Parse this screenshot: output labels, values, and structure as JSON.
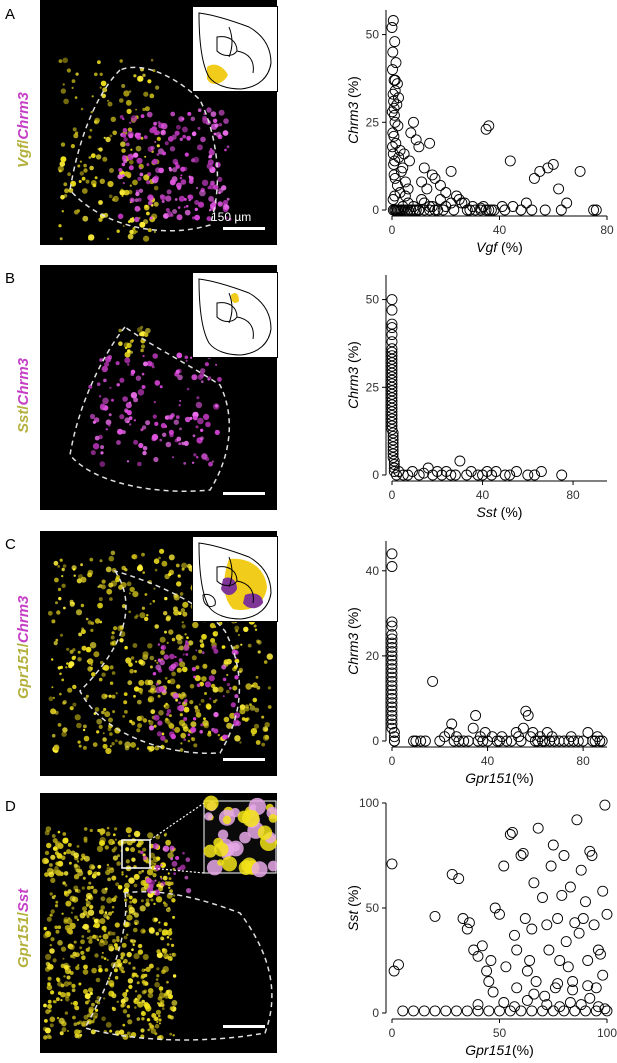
{
  "panels": [
    {
      "letter": "A",
      "stain_gene1": "Vgf",
      "stain_sep": "/",
      "stain_gene2": "Chrm3",
      "scale_text": "150 µm",
      "inset_highlight": "#f2cc1b",
      "chart_data": {
        "type": "scatter",
        "xlabel_gene": "Vgf",
        "xlabel_suffix": " (%)",
        "ylabel_gene": "Chrm3",
        "ylabel_suffix": " (%)",
        "xlim": [
          0,
          80
        ],
        "ylim": [
          0,
          57
        ],
        "xticks": [
          0,
          40,
          80
        ],
        "yticks": [
          0,
          25,
          50
        ],
        "xticklabels": [
          "0",
          "40",
          "80"
        ],
        "yticklabels": [
          "0",
          "25",
          "50"
        ],
        "x": [
          0,
          0.5,
          1,
          0.3,
          1.5,
          0.2,
          0.8,
          2,
          1.2,
          0.4,
          0.6,
          1.8,
          0.1,
          0.9,
          1.1,
          2.2,
          0.3,
          0.7,
          1.4,
          0.2,
          3,
          0.5,
          2.5,
          1,
          0.6,
          4,
          3.5,
          0.8,
          1.2,
          5,
          2,
          6,
          3,
          1,
          0.4,
          7,
          8,
          9,
          10,
          4.5,
          6.5,
          12,
          14,
          15,
          11,
          13,
          16,
          18,
          20,
          22,
          24,
          25,
          27,
          30,
          33,
          35,
          36,
          38,
          41,
          44,
          48,
          50,
          53,
          55,
          58,
          60,
          62,
          65,
          70,
          75,
          76,
          8,
          10,
          12,
          15,
          18,
          22,
          28,
          34,
          42,
          5,
          9,
          14,
          3,
          6,
          2,
          4,
          1.5,
          7,
          11,
          17,
          20,
          26,
          31,
          37,
          45,
          52,
          57,
          63,
          0.5,
          1,
          1.5,
          2,
          2.5,
          3,
          3.5,
          4,
          5,
          6,
          7,
          8,
          9,
          10,
          12,
          14,
          16,
          19,
          23,
          29,
          33,
          35,
          36,
          1.2,
          2.4,
          0.8
        ],
        "y": [
          52,
          54,
          48,
          45,
          42,
          40,
          37,
          36,
          34,
          33,
          31,
          30,
          28,
          27,
          25,
          24,
          22,
          21,
          19,
          18,
          17,
          16,
          15,
          14,
          13,
          12,
          11,
          10,
          9,
          8,
          7,
          6,
          5,
          4,
          3,
          22,
          25,
          20,
          18,
          16,
          14,
          12,
          19,
          10,
          8,
          6,
          9,
          7,
          5,
          11,
          4,
          3,
          2,
          1,
          0.5,
          23,
          24,
          0,
          1,
          14,
          0,
          2,
          9,
          11,
          12,
          13,
          6,
          2,
          11,
          0,
          0,
          1,
          0,
          2,
          1,
          3,
          2,
          0,
          1,
          0,
          4,
          0,
          1,
          0,
          2,
          0,
          1,
          0,
          0,
          3,
          0,
          1,
          2,
          0,
          0,
          1,
          0,
          0,
          0,
          0,
          0,
          0,
          0,
          0,
          0,
          0,
          0,
          0,
          0,
          0,
          0,
          0,
          0,
          0,
          0,
          0,
          0,
          0,
          0,
          0,
          0,
          0,
          37,
          32,
          29
        ]
      }
    },
    {
      "letter": "B",
      "stain_gene1": "Sst",
      "stain_sep": "/",
      "stain_gene2": "Chrm3",
      "inset_highlight": "#f2cc1b",
      "chart_data": {
        "type": "scatter",
        "xlabel_gene": "Sst",
        "xlabel_suffix": " (%)",
        "ylabel_gene": "Chrm3",
        "ylabel_suffix": " (%)",
        "xlim": [
          0,
          95
        ],
        "ylim": [
          0,
          57
        ],
        "xticks": [
          0,
          40,
          80
        ],
        "yticks": [
          0,
          25,
          50
        ],
        "xticklabels": [
          "0",
          "40",
          "80"
        ],
        "yticklabels": [
          "0",
          "25",
          "50"
        ],
        "x": [
          0,
          0,
          0,
          0,
          0,
          0,
          0,
          0,
          0,
          0,
          0,
          0,
          0,
          0,
          0,
          0,
          0,
          0,
          0,
          0,
          0,
          0,
          0,
          0,
          0,
          0,
          0,
          0,
          0,
          0,
          0.5,
          0.5,
          0.5,
          0.5,
          0.5,
          0.5,
          0.5,
          0.5,
          1,
          1,
          1,
          1,
          2,
          3,
          5,
          7,
          9,
          12,
          14,
          16,
          18,
          20,
          22,
          24,
          26,
          28,
          30,
          33,
          35,
          38,
          40,
          42,
          44,
          46,
          50,
          52,
          55,
          60,
          63,
          66,
          75
        ],
        "y": [
          50,
          47,
          43,
          42,
          40,
          38,
          36,
          35,
          34,
          33,
          32,
          31,
          30,
          29,
          28,
          27,
          26,
          25,
          24,
          23,
          22,
          21,
          20,
          19,
          18,
          17,
          16,
          15,
          14,
          13,
          12,
          11,
          10,
          9,
          8,
          7,
          6,
          5,
          4,
          3,
          2,
          1,
          0,
          1,
          0,
          0,
          1,
          0,
          0.5,
          2,
          0,
          1,
          0,
          1,
          0,
          0,
          4,
          0,
          1,
          0,
          0,
          1,
          0,
          1,
          0,
          0,
          1,
          0,
          0,
          1,
          0
        ]
      }
    },
    {
      "letter": "C",
      "stain_gene1": "Gpr151",
      "stain_sep": "/",
      "stain_gene2": "Chrm3",
      "inset_highlight": "#f2cc1b",
      "inset_highlight2": "#7f3596",
      "chart_data": {
        "type": "scatter",
        "xlabel_gene": "Gpr151",
        "xlabel_suffix": "(%)",
        "ylabel_gene": "Chrm3",
        "ylabel_suffix": " (%)",
        "xlim": [
          0,
          90
        ],
        "ylim": [
          0,
          47
        ],
        "xticks": [
          0,
          40,
          80
        ],
        "yticks": [
          0,
          20,
          40
        ],
        "xticklabels": [
          "0",
          "40",
          "80"
        ],
        "yticklabels": [
          "0",
          "20",
          "40"
        ],
        "x": [
          0,
          0,
          0,
          0,
          0,
          0,
          0,
          0,
          0,
          0,
          0,
          0,
          0,
          0,
          0,
          0,
          0,
          0,
          0,
          0,
          0,
          0,
          0,
          0,
          0,
          0,
          0,
          1,
          1,
          1,
          1,
          9,
          10,
          12,
          14,
          17,
          20,
          22,
          24,
          25,
          26,
          27,
          28,
          30,
          32,
          34,
          35,
          36,
          37,
          38,
          39,
          40,
          42,
          44,
          45,
          46,
          48,
          50,
          52,
          53,
          54,
          55,
          56,
          57,
          58,
          59,
          60,
          61,
          62,
          63,
          64,
          65,
          66,
          67,
          68,
          70,
          72,
          74,
          75,
          76,
          78,
          80,
          82,
          84,
          85,
          86,
          87,
          88
        ],
        "y": [
          44,
          41,
          28,
          27,
          25,
          24,
          23,
          22,
          21,
          20,
          19,
          18,
          17,
          16,
          15,
          14,
          13,
          12,
          11,
          10,
          9,
          8,
          7,
          6,
          5,
          4,
          3,
          2,
          1,
          0,
          0,
          0,
          0,
          0,
          0,
          14,
          0,
          1,
          2,
          4,
          0,
          1,
          0,
          0,
          0,
          3,
          6,
          0,
          1,
          0,
          2,
          0,
          1,
          0,
          0,
          1,
          0,
          0,
          2,
          1,
          0,
          3,
          7,
          6,
          1,
          2,
          0,
          0,
          1,
          0,
          0,
          2,
          0,
          1,
          0,
          0,
          0,
          0,
          1,
          0,
          0,
          0,
          2,
          0,
          0,
          1,
          0,
          0
        ]
      }
    },
    {
      "letter": "D",
      "stain_gene1": "Gpr151",
      "stain_sep": "/",
      "stain_gene2": "Sst",
      "chart_data": {
        "type": "scatter",
        "xlabel_gene": "Gpr151",
        "xlabel_suffix": "(%)",
        "ylabel_gene": "Sst",
        "ylabel_suffix": " (%)",
        "xlim": [
          0,
          100
        ],
        "ylim": [
          0,
          100
        ],
        "xticks": [
          0,
          50,
          100
        ],
        "yticks": [
          0,
          50,
          100
        ],
        "xticklabels": [
          "0",
          "50",
          "100"
        ],
        "yticklabels": [
          "0",
          "50",
          "100"
        ],
        "x": [
          0,
          1,
          3,
          20,
          28,
          31,
          33,
          35,
          36,
          38,
          40,
          42,
          44,
          45,
          46,
          48,
          50,
          52,
          53,
          55,
          56,
          57,
          58,
          60,
          61,
          62,
          63,
          64,
          65,
          66,
          67,
          68,
          70,
          72,
          73,
          74,
          75,
          76,
          77,
          78,
          79,
          80,
          81,
          82,
          83,
          84,
          85,
          86,
          87,
          88,
          89,
          90,
          91,
          92,
          93,
          94,
          95,
          96,
          97,
          98,
          99,
          100,
          5,
          10,
          15,
          20,
          25,
          30,
          35,
          40,
          45,
          50,
          55,
          60,
          65,
          70,
          75,
          80,
          85,
          90,
          95,
          100,
          40,
          52,
          57,
          63,
          72,
          78,
          83,
          88,
          92,
          96,
          99,
          47,
          58,
          66,
          71,
          77,
          84,
          91,
          98
        ],
        "y": [
          71,
          20,
          23,
          46,
          66,
          64,
          45,
          40,
          43,
          30,
          27,
          32,
          20,
          15,
          25,
          50,
          47,
          70,
          22,
          85,
          86,
          37,
          30,
          75,
          76,
          45,
          20,
          25,
          40,
          62,
          15,
          88,
          55,
          42,
          30,
          70,
          80,
          12,
          45,
          25,
          56,
          75,
          34,
          22,
          60,
          15,
          43,
          92,
          38,
          68,
          45,
          53,
          25,
          77,
          75,
          42,
          12,
          30,
          28,
          58,
          99,
          47,
          1,
          1,
          1,
          1,
          1,
          1,
          1,
          1,
          1,
          1,
          1,
          1,
          1,
          1,
          1,
          1,
          1,
          1,
          1,
          1,
          4,
          5,
          3,
          6,
          4,
          3,
          5,
          4,
          7,
          3,
          2,
          10,
          12,
          9,
          8,
          14,
          11,
          13,
          18
        ]
      }
    }
  ]
}
